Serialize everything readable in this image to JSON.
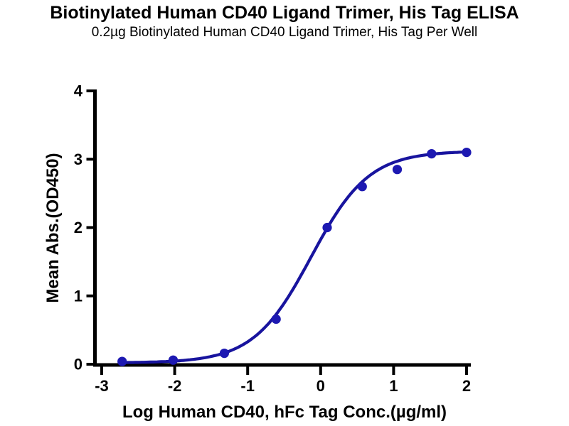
{
  "chart_data": {
    "type": "scatter",
    "title": "Biotinylated Human CD40 Ligand Trimer, His Tag ELISA",
    "subtitle": "0.2µg Biotinylated Human CD40 Ligand Trimer, His Tag Per Well",
    "xlabel": "Log Human CD40, hFc Tag Conc.(µg/ml)",
    "ylabel": "Mean Abs.(OD450)",
    "xlim": [
      -3,
      2
    ],
    "ylim": [
      0,
      4
    ],
    "x_ticks": [
      -3,
      -2,
      -1,
      0,
      1,
      2
    ],
    "x_tick_labels": [
      "-3",
      "-2",
      "-1",
      "0",
      "1",
      "2"
    ],
    "y_ticks": [
      0,
      1,
      2,
      3,
      4
    ],
    "y_tick_labels": [
      "0",
      "1",
      "2",
      "3",
      "4"
    ],
    "grid": false,
    "legend": null,
    "points": [
      {
        "x": -2.72,
        "y": 0.04
      },
      {
        "x": -2.02,
        "y": 0.06
      },
      {
        "x": -1.32,
        "y": 0.16
      },
      {
        "x": -0.61,
        "y": 0.66
      },
      {
        "x": 0.09,
        "y": 2.0
      },
      {
        "x": 0.57,
        "y": 2.6
      },
      {
        "x": 1.05,
        "y": 2.85
      },
      {
        "x": 1.52,
        "y": 3.08
      },
      {
        "x": 2.0,
        "y": 3.1
      }
    ],
    "fit_4pl": {
      "bottom": 0.02,
      "top": 3.12,
      "logEC50": -0.13,
      "hill": 1.1
    },
    "curve_x_range": [
      -2.72,
      2.0
    ],
    "colors": {
      "curve": "#18149e",
      "marker": "#1d19b2",
      "axis": "#000000",
      "text": "#000000"
    }
  }
}
